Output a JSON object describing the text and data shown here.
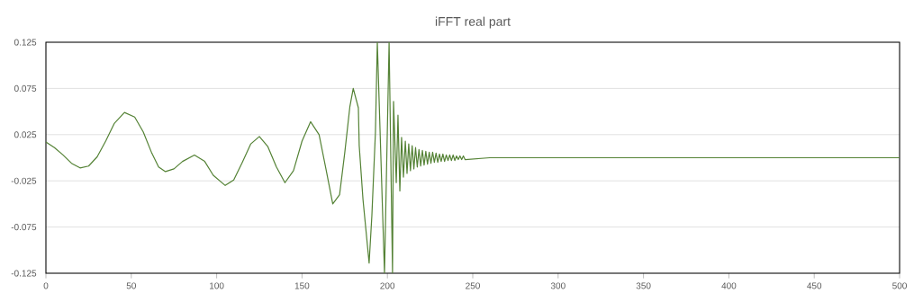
{
  "chart_data": {
    "type": "line",
    "title": "iFFT real part",
    "x": [
      0,
      5,
      10,
      15,
      20,
      25,
      30,
      35,
      40,
      46,
      52,
      57,
      62,
      66,
      70,
      75,
      80,
      87,
      93,
      98,
      105,
      110,
      115,
      120,
      125,
      130,
      135,
      140,
      145,
      150,
      155,
      160,
      164,
      168,
      172,
      175,
      178,
      180,
      183,
      183.5,
      185.7,
      189.3,
      190.9,
      193,
      194.1,
      198.3,
      201,
      203,
      203.6,
      205.2,
      206.2,
      207.3,
      208.3,
      209.4,
      210.5,
      211.5,
      212.5,
      213.5,
      214.5,
      215.5,
      216.5,
      217.5,
      218.5,
      219.5,
      220.5,
      221.5,
      222.5,
      223.5,
      224.5,
      225.5,
      226.5,
      227.5,
      228.5,
      229.5,
      230.5,
      231.5,
      232.5,
      233.5,
      234.5,
      235.5,
      236.5,
      237.5,
      238.5,
      239.5,
      240.5,
      241.5,
      242.5,
      243.5,
      244.5,
      245.5,
      260,
      300,
      400,
      500
    ],
    "series": [
      {
        "color": "#548235",
        "values": [
          0.017,
          0.011,
          0.003,
          -0.006,
          -0.011,
          -0.009,
          0.001,
          0.018,
          0.037,
          0.049,
          0.044,
          0.028,
          0.005,
          -0.01,
          -0.015,
          -0.012,
          -0.004,
          0.003,
          -0.004,
          -0.019,
          -0.03,
          -0.024,
          -0.005,
          0.015,
          0.023,
          0.012,
          -0.01,
          -0.027,
          -0.014,
          0.018,
          0.039,
          0.025,
          -0.012,
          -0.05,
          -0.04,
          0.005,
          0.055,
          0.075,
          0.054,
          0.013,
          -0.045,
          -0.114,
          -0.063,
          0.028,
          0.125,
          -0.125,
          0.125,
          -0.125,
          0.061,
          -0.027,
          0.046,
          -0.036,
          0.022,
          -0.021,
          0.018,
          -0.017,
          0.015,
          -0.014,
          0.013,
          -0.012,
          0.011,
          -0.01,
          0.009,
          -0.009,
          0.008,
          -0.008,
          0.007,
          -0.007,
          0.006,
          -0.006,
          0.006,
          -0.005,
          0.005,
          -0.005,
          0.004,
          -0.004,
          0.004,
          -0.004,
          0.003,
          -0.003,
          0.003,
          -0.003,
          0.003,
          -0.003,
          0.002,
          -0.002,
          0.002,
          -0.002,
          0.002,
          -0.002,
          0,
          0,
          0,
          0
        ]
      }
    ],
    "xlim": [
      0,
      500
    ],
    "xticks": [
      0,
      50,
      100,
      150,
      200,
      250,
      300,
      350,
      400,
      450,
      500
    ],
    "ylim": [
      -0.125,
      0.125
    ],
    "yticks": [
      -0.125,
      -0.075,
      -0.025,
      0.025,
      0.075,
      0.125
    ],
    "grid": "y",
    "line_style": "solid"
  }
}
